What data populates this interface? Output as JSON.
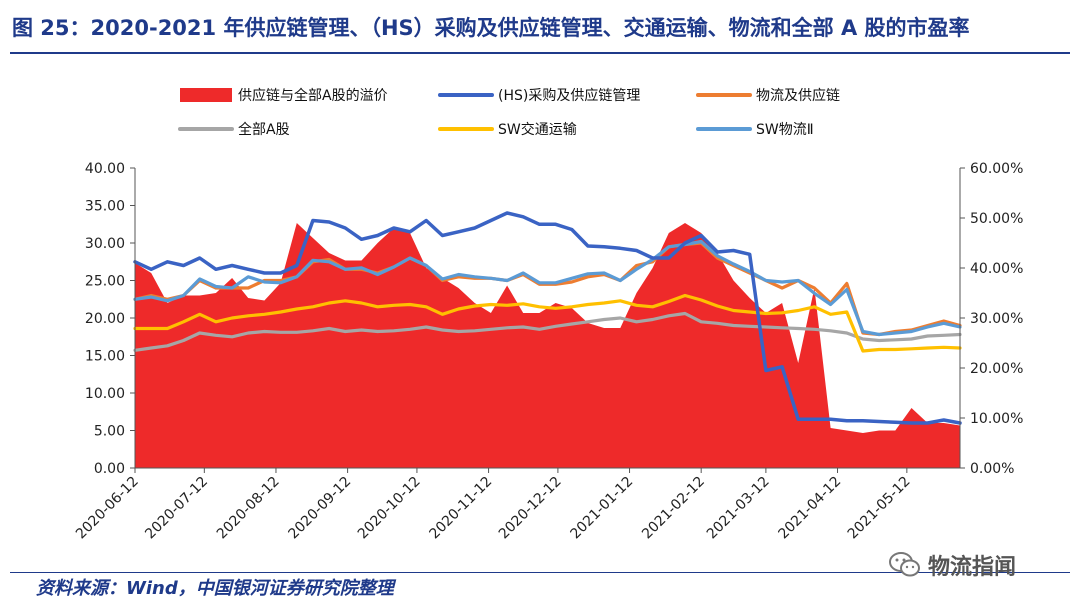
{
  "title": "图 25：2020-2021 年供应链管理、（HS）采购及供应链管理、交通运输、物流和全部 A 股的市盈率",
  "source": "资料来源：Wind，中国银河证券研究院整理",
  "watermark": "物流指闻",
  "chart_data": {
    "type": "line",
    "x": [
      "2020-06-12",
      "2020-06-19",
      "2020-06-26",
      "2020-07-03",
      "2020-07-10",
      "2020-07-17",
      "2020-07-24",
      "2020-07-31",
      "2020-08-07",
      "2020-08-14",
      "2020-08-21",
      "2020-08-28",
      "2020-09-04",
      "2020-09-11",
      "2020-09-18",
      "2020-09-25",
      "2020-10-02",
      "2020-10-09",
      "2020-10-16",
      "2020-10-23",
      "2020-10-30",
      "2020-11-06",
      "2020-11-13",
      "2020-11-20",
      "2020-11-27",
      "2020-12-04",
      "2020-12-11",
      "2020-12-18",
      "2020-12-25",
      "2021-01-01",
      "2021-01-08",
      "2021-01-15",
      "2021-01-22",
      "2021-01-29",
      "2021-02-05",
      "2021-02-12",
      "2021-02-19",
      "2021-02-26",
      "2021-03-05",
      "2021-03-12",
      "2021-03-19",
      "2021-03-26",
      "2021-04-02",
      "2021-04-09",
      "2021-04-16",
      "2021-04-23",
      "2021-04-30",
      "2021-05-07",
      "2021-05-14",
      "2021-05-21",
      "2021-05-28",
      "2021-06-04"
    ],
    "x_ticks": [
      "2020-06-12",
      "2020-07-12",
      "2020-08-12",
      "2020-09-12",
      "2020-10-12",
      "2020-11-12",
      "2020-12-12",
      "2021-01-12",
      "2021-02-12",
      "2021-03-12",
      "2021-04-12",
      "2021-05-12"
    ],
    "left_axis": {
      "ylim": [
        0,
        40
      ],
      "ticks": [
        "0.00",
        "5.00",
        "10.00",
        "15.00",
        "20.00",
        "25.00",
        "30.00",
        "35.00",
        "40.00"
      ]
    },
    "right_axis": {
      "ylim": [
        0,
        60
      ],
      "ticks": [
        "0.00%",
        "10.00%",
        "20.00%",
        "30.00%",
        "40.00%",
        "50.00%",
        "60.00%"
      ]
    },
    "legend_position": "top",
    "series": [
      {
        "name": "供应链与全部A股的溢价",
        "kind": "area",
        "axis": "right",
        "color": "#ee2a2a",
        "values": [
          41,
          39,
          33,
          34.5,
          34.5,
          35,
          38,
          34,
          33.5,
          37,
          49,
          46,
          43,
          41.5,
          41.5,
          45,
          48,
          47,
          40,
          38,
          36,
          33,
          31,
          36.5,
          31,
          31,
          33,
          32,
          29,
          28,
          28,
          35,
          40,
          47,
          49,
          47,
          43,
          37.5,
          34,
          31,
          33,
          21,
          36,
          8,
          7.5,
          7,
          7.5,
          7.5,
          12,
          9,
          9,
          8.5
        ]
      },
      {
        "name": "(HS)采购及供应链管理",
        "kind": "line",
        "axis": "left",
        "color": "#3a63c4",
        "values": [
          27.5,
          26.5,
          27.5,
          27,
          28,
          26.5,
          27,
          26.5,
          26,
          26,
          27,
          33,
          32.8,
          32,
          30.5,
          31,
          32,
          31.5,
          33,
          31,
          31.5,
          32,
          33,
          34,
          33.5,
          32.5,
          32.5,
          31.8,
          29.6,
          29.5,
          29.3,
          29,
          28,
          28,
          30,
          31,
          28.8,
          29,
          28.5,
          13,
          13.5,
          6.5,
          6.5,
          6.5,
          6.3,
          6.3,
          6.2,
          6.1,
          6,
          6,
          6.4,
          6
        ]
      },
      {
        "name": "物流及供应链",
        "kind": "line",
        "axis": "left",
        "color": "#ed7d31",
        "values": [
          22.5,
          23,
          22.5,
          23,
          25,
          24,
          24,
          24,
          25,
          25,
          25.5,
          27.5,
          27.8,
          26.5,
          26.5,
          26,
          26.8,
          28,
          27,
          25,
          25.5,
          25.3,
          25.3,
          25,
          25.8,
          24.5,
          24.5,
          24.8,
          25.5,
          25.8,
          25,
          27,
          27.5,
          29.5,
          29.8,
          30,
          28,
          27,
          26,
          25,
          24,
          25,
          24,
          22,
          24.6,
          18,
          17.8,
          18.2,
          18.4,
          19,
          19.6,
          19
        ]
      },
      {
        "name": "全部A股",
        "kind": "line",
        "axis": "left",
        "color": "#a6a6a6",
        "values": [
          15.7,
          16,
          16.3,
          17,
          18,
          17.7,
          17.5,
          18,
          18.2,
          18.1,
          18.1,
          18.3,
          18.6,
          18.2,
          18.4,
          18.2,
          18.3,
          18.5,
          18.8,
          18.4,
          18.2,
          18.3,
          18.5,
          18.7,
          18.8,
          18.5,
          18.9,
          19.2,
          19.5,
          19.8,
          20,
          19.5,
          19.8,
          20.3,
          20.6,
          19.5,
          19.3,
          19,
          18.9,
          18.8,
          18.7,
          18.6,
          18.5,
          18.3,
          18,
          17.2,
          17,
          17.1,
          17.2,
          17.6,
          17.7,
          17.8
        ]
      },
      {
        "name": "SW交通运输",
        "kind": "line",
        "axis": "left",
        "color": "#ffc000",
        "values": [
          18.6,
          18.6,
          18.6,
          19.5,
          20.5,
          19.5,
          20,
          20.3,
          20.5,
          20.8,
          21.2,
          21.5,
          22,
          22.3,
          22,
          21.5,
          21.7,
          21.8,
          21.5,
          20.5,
          21.2,
          21.6,
          21.8,
          21.7,
          21.9,
          21.5,
          21.3,
          21.5,
          21.8,
          22,
          22.3,
          21.7,
          21.5,
          22.2,
          23,
          22.4,
          21.6,
          21,
          20.8,
          20.6,
          20.7,
          21,
          21.5,
          20.5,
          20.8,
          15.6,
          15.8,
          15.8,
          15.9,
          16,
          16.1,
          16
        ]
      },
      {
        "name": "SW物流Ⅱ",
        "kind": "line",
        "axis": "left",
        "color": "#5b9bd5",
        "values": [
          22.5,
          22.8,
          22.3,
          23,
          25.2,
          24.2,
          24,
          25.5,
          24.8,
          24.7,
          25.5,
          27.7,
          27.5,
          26.5,
          26.7,
          25.8,
          26.8,
          28,
          27,
          25.2,
          25.8,
          25.5,
          25.3,
          25,
          26,
          24.7,
          24.7,
          25.3,
          25.9,
          26,
          25,
          26.5,
          27.8,
          29.5,
          29.8,
          30.2,
          28.3,
          27.2,
          26.2,
          25,
          24.8,
          25,
          23.3,
          21.8,
          23.8,
          18.2,
          17.8,
          18,
          18.2,
          18.8,
          19.3,
          18.8
        ]
      }
    ]
  }
}
